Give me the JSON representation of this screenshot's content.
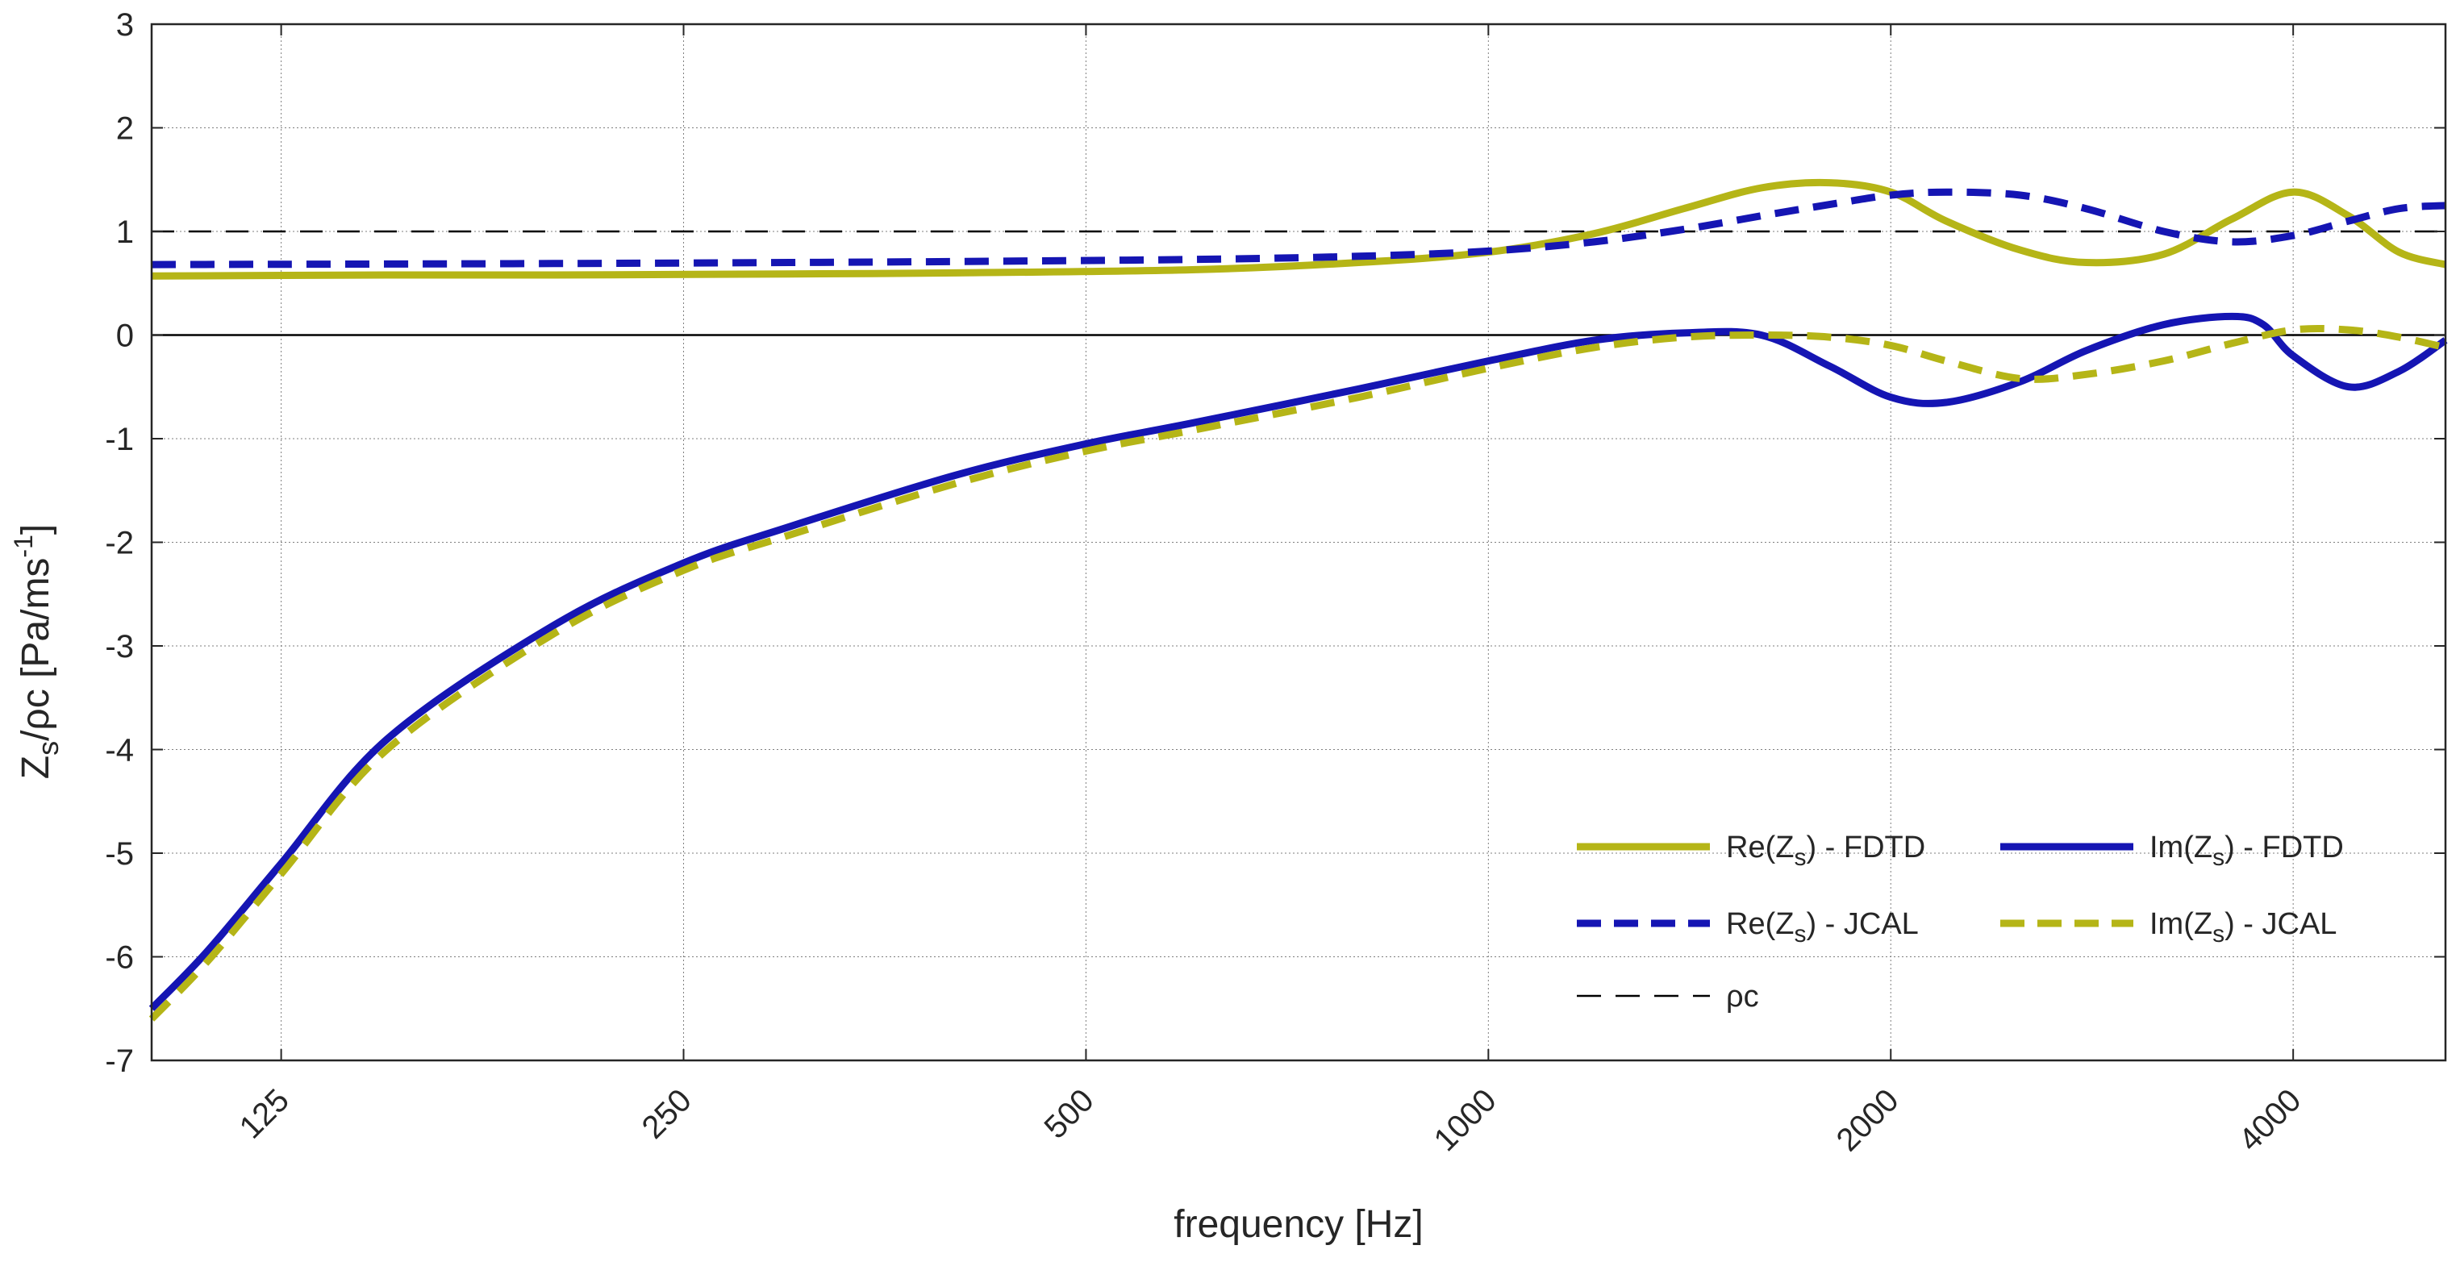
{
  "chart_data": {
    "type": "line",
    "xscale": "log",
    "xlim": [
      100,
      5200
    ],
    "ylim": [
      -7,
      3
    ],
    "xlabel": "frequency [Hz]",
    "ylabel": {
      "main": "Z",
      "sub": "s",
      "rest": "/ρc [Pa/ms",
      "sup": "-1",
      "end": "]"
    },
    "xticks": [
      125,
      250,
      500,
      1000,
      2000,
      4000
    ],
    "xtick_labels": [
      "125",
      "250",
      "500",
      "1000",
      "2000",
      "4000"
    ],
    "yticks": [
      3,
      2,
      1,
      0,
      -1,
      -2,
      -3,
      -4,
      -5,
      -6,
      -7
    ],
    "ytick_labels": [
      "3",
      "2",
      "1",
      "0",
      "-1",
      "-2",
      "-3",
      "-4",
      "-5",
      "-6",
      "-7"
    ],
    "colors": {
      "olive": "#b5b517",
      "blue": "#1515b3",
      "black": "#000000",
      "grid": "#7f7f7f"
    },
    "reference_line": {
      "name": "ρc",
      "y": 1
    },
    "series": [
      {
        "name": "Re(Zs) - FDTD",
        "color": "#b5b517",
        "style": "solid",
        "x": [
          100,
          150,
          200,
          300,
          400,
          600,
          800,
          1000,
          1200,
          1400,
          1600,
          1800,
          2000,
          2200,
          2500,
          2800,
          3200,
          3600,
          4000,
          4400,
          4800,
          5200
        ],
        "y": [
          0.57,
          0.58,
          0.58,
          0.59,
          0.6,
          0.63,
          0.7,
          0.8,
          0.98,
          1.22,
          1.42,
          1.47,
          1.38,
          1.1,
          0.82,
          0.7,
          0.78,
          1.12,
          1.38,
          1.15,
          0.8,
          0.68
        ]
      },
      {
        "name": "Im(Zs) - FDTD",
        "color": "#1515b3",
        "style": "solid",
        "x": [
          100,
          110,
          125,
          150,
          200,
          250,
          300,
          400,
          500,
          600,
          800,
          1000,
          1200,
          1400,
          1600,
          1800,
          2000,
          2200,
          2500,
          2800,
          3200,
          3600,
          3800,
          4000,
          4400,
          4800,
          5200
        ],
        "y": [
          -6.5,
          -5.95,
          -5.1,
          -3.9,
          -2.8,
          -2.2,
          -1.85,
          -1.35,
          -1.05,
          -0.85,
          -0.52,
          -0.25,
          -0.05,
          0.02,
          0.0,
          -0.3,
          -0.6,
          -0.65,
          -0.45,
          -0.15,
          0.1,
          0.18,
          0.1,
          -0.2,
          -0.5,
          -0.35,
          -0.05
        ]
      },
      {
        "name": "Re(Zs) - JCAL",
        "color": "#1515b3",
        "style": "dashed",
        "x": [
          100,
          200,
          300,
          400,
          600,
          800,
          1000,
          1200,
          1400,
          1600,
          1800,
          2000,
          2200,
          2500,
          2800,
          3200,
          3600,
          4000,
          4400,
          4800,
          5200
        ],
        "y": [
          0.68,
          0.69,
          0.7,
          0.71,
          0.73,
          0.76,
          0.81,
          0.9,
          1.02,
          1.15,
          1.26,
          1.35,
          1.38,
          1.35,
          1.22,
          1.0,
          0.9,
          0.96,
          1.1,
          1.22,
          1.25
        ]
      },
      {
        "name": "Im(Zs) - JCAL",
        "color": "#b5b517",
        "style": "dashed",
        "x": [
          100,
          110,
          125,
          150,
          200,
          250,
          300,
          400,
          500,
          600,
          800,
          1000,
          1200,
          1400,
          1600,
          1800,
          2000,
          2200,
          2500,
          2800,
          3200,
          3600,
          4000,
          4400,
          4800,
          5200
        ],
        "y": [
          -6.6,
          -6.05,
          -5.2,
          -4.0,
          -2.88,
          -2.27,
          -1.93,
          -1.43,
          -1.12,
          -0.92,
          -0.6,
          -0.32,
          -0.12,
          -0.02,
          0.0,
          -0.02,
          -0.1,
          -0.25,
          -0.42,
          -0.38,
          -0.25,
          -0.08,
          0.05,
          0.05,
          -0.02,
          -0.12
        ]
      }
    ],
    "legend": {
      "position": "bottom-right",
      "entries": [
        {
          "label_main": "Re(Z",
          "label_sub": "s",
          "label_rest": ") - FDTD",
          "color": "#b5b517",
          "style": "solid"
        },
        {
          "label_main": "Im(Z",
          "label_sub": "s",
          "label_rest": ") - FDTD",
          "color": "#1515b3",
          "style": "solid"
        },
        {
          "label_main": "Re(Z",
          "label_sub": "s",
          "label_rest": ") - JCAL",
          "color": "#1515b3",
          "style": "dashed"
        },
        {
          "label_main": "Im(Z",
          "label_sub": "s",
          "label_rest": ") - JCAL",
          "color": "#b5b517",
          "style": "dashed"
        },
        {
          "label_main": "ρc",
          "label_sub": "",
          "label_rest": "",
          "color": "#000000",
          "style": "thin-dashed"
        }
      ]
    }
  }
}
